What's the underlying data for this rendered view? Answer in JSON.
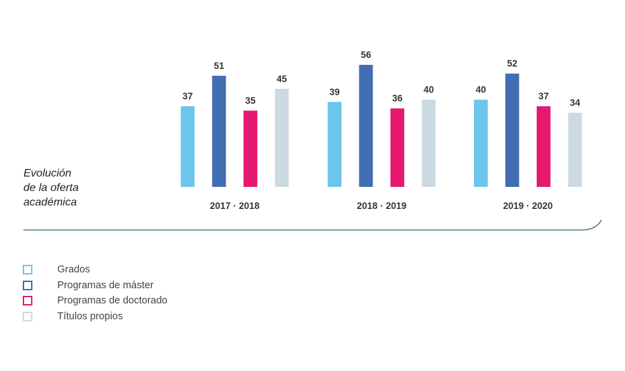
{
  "title_lines": [
    "Evolución",
    "de la oferta",
    "académica"
  ],
  "chart_data": {
    "type": "bar",
    "categories": [
      "2017 · 2018",
      "2018 · 2019",
      "2019 · 2020"
    ],
    "series": [
      {
        "name": "Grados",
        "color": "#6cc5ea",
        "values": [
          37,
          39,
          40
        ]
      },
      {
        "name": "Programas de máster",
        "color": "#416db3",
        "values": [
          51,
          56,
          52
        ]
      },
      {
        "name": "Programas de doctorado",
        "color": "#e5196f",
        "values": [
          35,
          36,
          37
        ]
      },
      {
        "name": "Títulos propios",
        "color": "#cbdae1",
        "values": [
          45,
          40,
          34
        ]
      }
    ],
    "ylim": [
      0,
      56
    ],
    "grid": false,
    "legend_position": "bottom-left"
  },
  "colors": {
    "baseline": "#4f7a90",
    "text": "#333333"
  }
}
